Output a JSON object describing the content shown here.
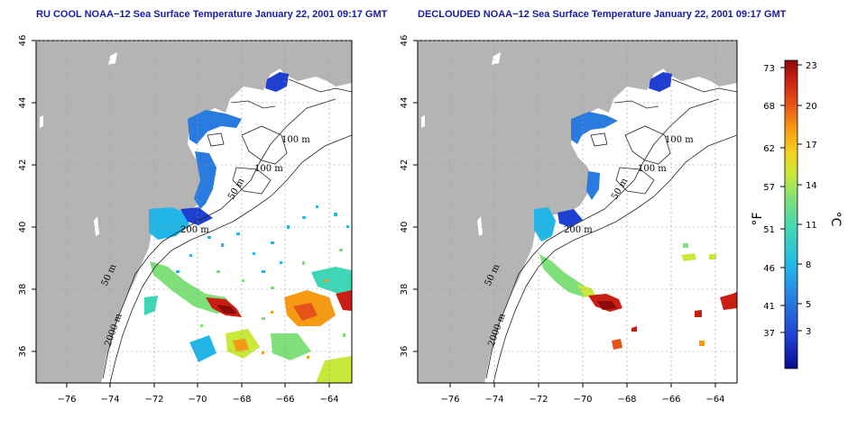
{
  "panels": [
    {
      "title": "RU COOL NOAA−12 Sea Surface Temperature January 22, 2001 09:17 GMT"
    },
    {
      "title": "DECLOUDED NOAA−12 Sea Surface Temperature January 22, 2001 09:17 GMT"
    }
  ],
  "axes": {
    "lon_ticks": [
      "−76",
      "−74",
      "−72",
      "−70",
      "−68",
      "−66",
      "−64"
    ],
    "lat_ticks": [
      "36",
      "38",
      "40",
      "42",
      "44",
      "46"
    ],
    "lon_range": [
      -77.2,
      -62.8
    ],
    "lat_range": [
      35.0,
      46.0
    ],
    "grid": true
  },
  "contour_labels": [
    "100 m",
    "100 m",
    "50 m",
    "200 m",
    "50 m",
    "2000 m"
  ],
  "colorbar": {
    "fahrenheit_ticks": [
      "73",
      "68",
      "62",
      "57",
      "51",
      "46",
      "41",
      "37"
    ],
    "celsius_ticks": [
      "23",
      "20",
      "17",
      "14",
      "11",
      "8",
      "5",
      "3"
    ],
    "fahrenheit_label": "°F",
    "celsius_label": "°C",
    "colors": [
      "#0a0a8c",
      "#1f3fd0",
      "#2a7be0",
      "#22b6e8",
      "#3fd6b8",
      "#7fe07a",
      "#c8e83a",
      "#f5d21e",
      "#f59a12",
      "#e5521a",
      "#c81e14",
      "#8c0a0a"
    ]
  },
  "colors": {
    "land": "#b4b4b4",
    "ocean": "#ffffff",
    "title": "#1a1aa8",
    "grid": "#9a9a9a",
    "contour": "#222222"
  }
}
